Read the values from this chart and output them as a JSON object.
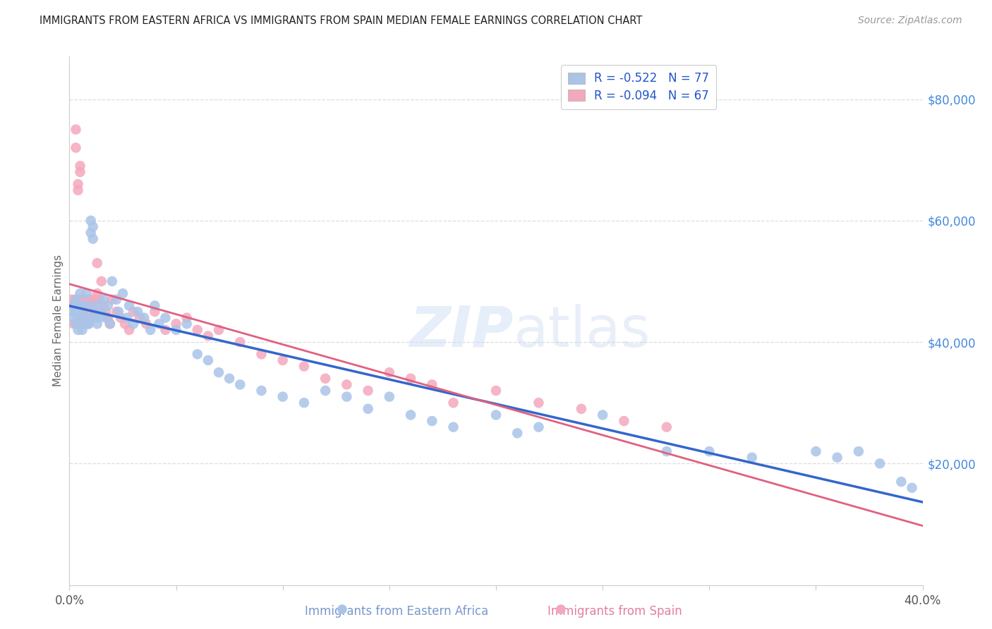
{
  "title": "IMMIGRANTS FROM EASTERN AFRICA VS IMMIGRANTS FROM SPAIN MEDIAN FEMALE EARNINGS CORRELATION CHART",
  "source": "Source: ZipAtlas.com",
  "ylabel": "Median Female Earnings",
  "blue_label": "Immigrants from Eastern Africa",
  "pink_label": "Immigrants from Spain",
  "legend_R_blue": "R = -0.522",
  "legend_N_blue": "N = 77",
  "legend_R_pink": "R = -0.094",
  "legend_N_pink": "N = 67",
  "blue_color": "#aac4e8",
  "pink_color": "#f4a8bc",
  "blue_line_color": "#3366cc",
  "pink_line_color": "#e06080",
  "background_color": "#ffffff",
  "xmin": 0.0,
  "xmax": 0.4,
  "ymin": 0,
  "ymax": 87000,
  "blue_x": [
    0.001,
    0.002,
    0.002,
    0.003,
    0.003,
    0.003,
    0.004,
    0.004,
    0.005,
    0.005,
    0.005,
    0.006,
    0.006,
    0.007,
    0.007,
    0.008,
    0.008,
    0.008,
    0.009,
    0.009,
    0.01,
    0.01,
    0.011,
    0.011,
    0.012,
    0.012,
    0.013,
    0.013,
    0.014,
    0.015,
    0.016,
    0.017,
    0.018,
    0.019,
    0.02,
    0.022,
    0.023,
    0.025,
    0.027,
    0.028,
    0.03,
    0.032,
    0.035,
    0.038,
    0.04,
    0.042,
    0.045,
    0.05,
    0.055,
    0.06,
    0.065,
    0.07,
    0.075,
    0.08,
    0.09,
    0.1,
    0.11,
    0.12,
    0.13,
    0.14,
    0.15,
    0.16,
    0.17,
    0.18,
    0.2,
    0.21,
    0.22,
    0.25,
    0.28,
    0.3,
    0.32,
    0.35,
    0.36,
    0.37,
    0.38,
    0.39,
    0.395
  ],
  "blue_y": [
    45000,
    46000,
    44000,
    43000,
    47000,
    45000,
    42000,
    44000,
    48000,
    46000,
    43000,
    45000,
    42000,
    44000,
    46000,
    43000,
    48000,
    44000,
    46000,
    43000,
    58000,
    60000,
    59000,
    57000,
    45000,
    44000,
    46000,
    43000,
    44000,
    45000,
    47000,
    44000,
    46000,
    43000,
    50000,
    47000,
    45000,
    48000,
    44000,
    46000,
    43000,
    45000,
    44000,
    42000,
    46000,
    43000,
    44000,
    42000,
    43000,
    38000,
    37000,
    35000,
    34000,
    33000,
    32000,
    31000,
    30000,
    32000,
    31000,
    29000,
    31000,
    28000,
    27000,
    26000,
    28000,
    25000,
    26000,
    28000,
    22000,
    22000,
    21000,
    22000,
    21000,
    22000,
    20000,
    17000,
    16000
  ],
  "pink_x": [
    0.001,
    0.002,
    0.002,
    0.003,
    0.003,
    0.004,
    0.004,
    0.005,
    0.005,
    0.006,
    0.006,
    0.007,
    0.007,
    0.008,
    0.008,
    0.009,
    0.009,
    0.01,
    0.01,
    0.011,
    0.012,
    0.013,
    0.013,
    0.014,
    0.015,
    0.016,
    0.017,
    0.018,
    0.019,
    0.02,
    0.022,
    0.024,
    0.026,
    0.028,
    0.03,
    0.033,
    0.036,
    0.04,
    0.045,
    0.05,
    0.055,
    0.06,
    0.065,
    0.07,
    0.08,
    0.09,
    0.1,
    0.11,
    0.12,
    0.13,
    0.14,
    0.15,
    0.16,
    0.17,
    0.18,
    0.2,
    0.22,
    0.24,
    0.26,
    0.28,
    0.003,
    0.005,
    0.007,
    0.009,
    0.012,
    0.015,
    0.018
  ],
  "pink_y": [
    47000,
    43000,
    46000,
    75000,
    72000,
    66000,
    65000,
    47000,
    69000,
    45000,
    44000,
    43000,
    46000,
    47000,
    44000,
    46000,
    43000,
    47000,
    44000,
    46000,
    45000,
    53000,
    48000,
    47000,
    50000,
    46000,
    45000,
    44000,
    43000,
    47000,
    45000,
    44000,
    43000,
    42000,
    45000,
    44000,
    43000,
    45000,
    42000,
    43000,
    44000,
    42000,
    41000,
    42000,
    40000,
    38000,
    37000,
    36000,
    34000,
    33000,
    32000,
    35000,
    34000,
    33000,
    30000,
    32000,
    30000,
    29000,
    27000,
    26000,
    47000,
    68000,
    46000,
    45000,
    47000,
    45000,
    44000
  ]
}
